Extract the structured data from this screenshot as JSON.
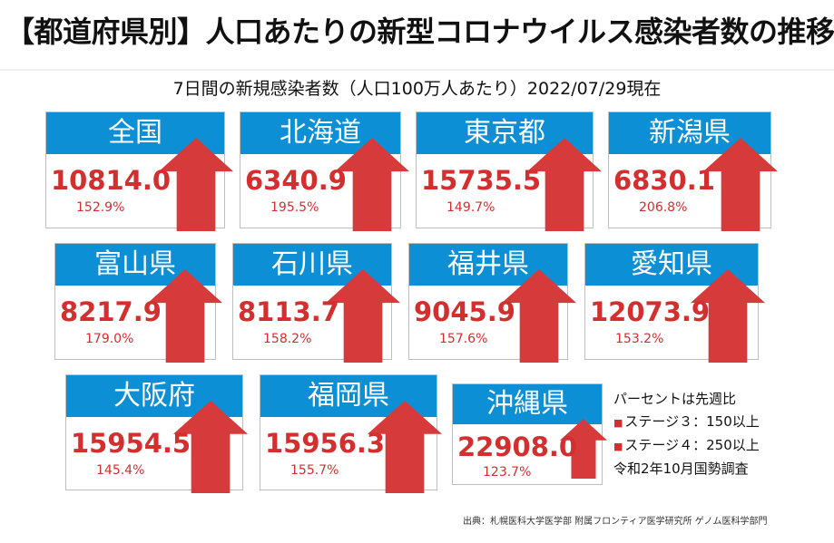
{
  "header": {
    "title": "【都道府県別】人口あたりの新型コロナウイルス感染者数の推移",
    "subtitle": "7日間の新規感染者数（人口100万人あたり）2022/07/29現在"
  },
  "colors": {
    "header_blue": "#0d8fd6",
    "value_red": "#d32f2f",
    "arrow_red": "#d63a3a"
  },
  "cards": [
    {
      "name": "全国",
      "value": "10814.0",
      "percent": "152.9%",
      "icon": "up-arrow-icon"
    },
    {
      "name": "北海道",
      "value": "6340.9",
      "percent": "195.5%",
      "icon": "up-arrow-icon"
    },
    {
      "name": "東京都",
      "value": "15735.5",
      "percent": "149.7%",
      "icon": "up-arrow-icon"
    },
    {
      "name": "新潟県",
      "value": "6830.1",
      "percent": "206.8%",
      "icon": "up-arrow-icon"
    },
    {
      "name": "富山県",
      "value": "8217.9",
      "percent": "179.0%",
      "icon": "up-arrow-icon"
    },
    {
      "name": "石川県",
      "value": "8113.7",
      "percent": "158.2%",
      "icon": "up-arrow-icon"
    },
    {
      "name": "福井県",
      "value": "9045.9",
      "percent": "157.6%",
      "icon": "up-arrow-icon"
    },
    {
      "name": "愛知県",
      "value": "12073.9",
      "percent": "153.2%",
      "icon": "up-arrow-icon"
    },
    {
      "name": "大阪府",
      "value": "15954.5",
      "percent": "145.4%",
      "icon": "up-arrow-icon"
    },
    {
      "name": "福岡県",
      "value": "15956.3",
      "percent": "155.7%",
      "icon": "up-arrow-icon"
    },
    {
      "name": "沖縄県",
      "value": "22908.0",
      "percent": "123.7%",
      "icon": "up-arrow-icon"
    }
  ],
  "notes": {
    "line1": "パーセントは先週比",
    "line2": "ステージ３：150以上",
    "line3": "ステージ４：250以上",
    "line4": "令和2年10月国勢調査",
    "bullet": "■"
  },
  "footer": {
    "source": "出典：札幌医科大学医学部 附属フロンティア医学研究所 ゲノム医科学部門"
  }
}
